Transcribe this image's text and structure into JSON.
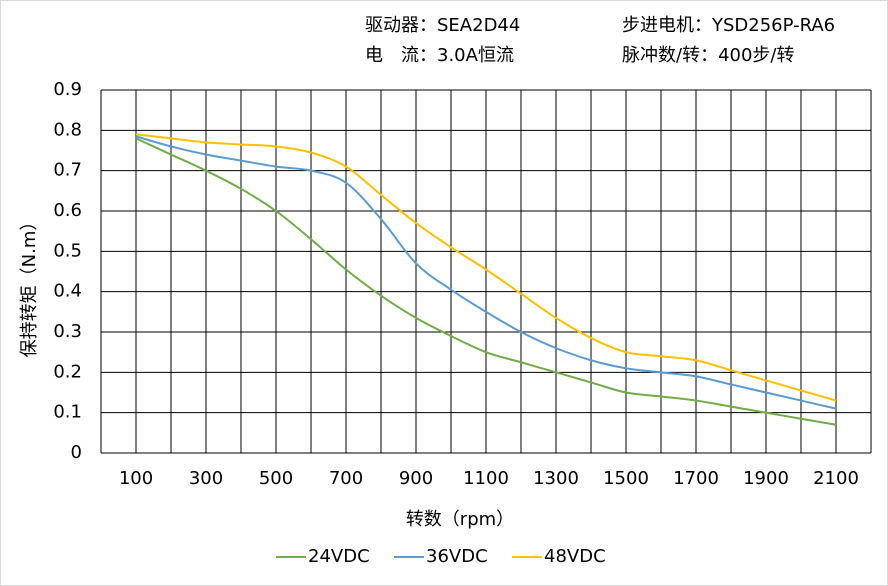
{
  "chart_data": {
    "type": "line",
    "header": [
      "驱动器：SEA2D44",
      "步进电机：YSD256P-RA6",
      "电　流：3.0A恒流",
      "脉冲数/转：400步/转"
    ],
    "xlabel": "转数（rpm）",
    "ylabel": "保持转矩（N.m）",
    "x": [
      100,
      200,
      300,
      400,
      500,
      600,
      700,
      800,
      900,
      1000,
      1100,
      1200,
      1300,
      1400,
      1500,
      1600,
      1700,
      1800,
      1900,
      2000,
      2100
    ],
    "series": [
      {
        "name": "24VDC",
        "color": "#70ad47",
        "values": [
          0.78,
          0.74,
          0.7,
          0.655,
          0.6,
          0.53,
          0.455,
          0.39,
          0.335,
          0.29,
          0.25,
          0.225,
          0.2,
          0.175,
          0.15,
          0.14,
          0.13,
          0.115,
          0.1,
          0.085,
          0.07
        ]
      },
      {
        "name": "36VDC",
        "color": "#5b9bd5",
        "values": [
          0.785,
          0.76,
          0.74,
          0.725,
          0.71,
          0.7,
          0.67,
          0.58,
          0.47,
          0.405,
          0.35,
          0.3,
          0.26,
          0.23,
          0.21,
          0.2,
          0.19,
          0.17,
          0.15,
          0.13,
          0.11
        ]
      },
      {
        "name": "48VDC",
        "color": "#ffc000",
        "values": [
          0.79,
          0.78,
          0.77,
          0.765,
          0.76,
          0.745,
          0.71,
          0.64,
          0.57,
          0.51,
          0.455,
          0.395,
          0.335,
          0.285,
          0.25,
          0.24,
          0.23,
          0.205,
          0.18,
          0.155,
          0.13
        ]
      }
    ],
    "xlim": [
      0,
      2200
    ],
    "xticks": [
      100,
      300,
      500,
      700,
      900,
      1100,
      1300,
      1500,
      1700,
      1900,
      2100
    ],
    "x_gridlines": [
      0,
      200,
      400,
      600,
      800,
      1000,
      1200,
      1400,
      1600,
      1800,
      2000,
      2200
    ],
    "ylim": [
      0,
      0.9
    ],
    "yticks": [
      0,
      0.1,
      0.2,
      0.3,
      0.4,
      0.5,
      0.6,
      0.7,
      0.8,
      0.9
    ],
    "grid": true
  }
}
